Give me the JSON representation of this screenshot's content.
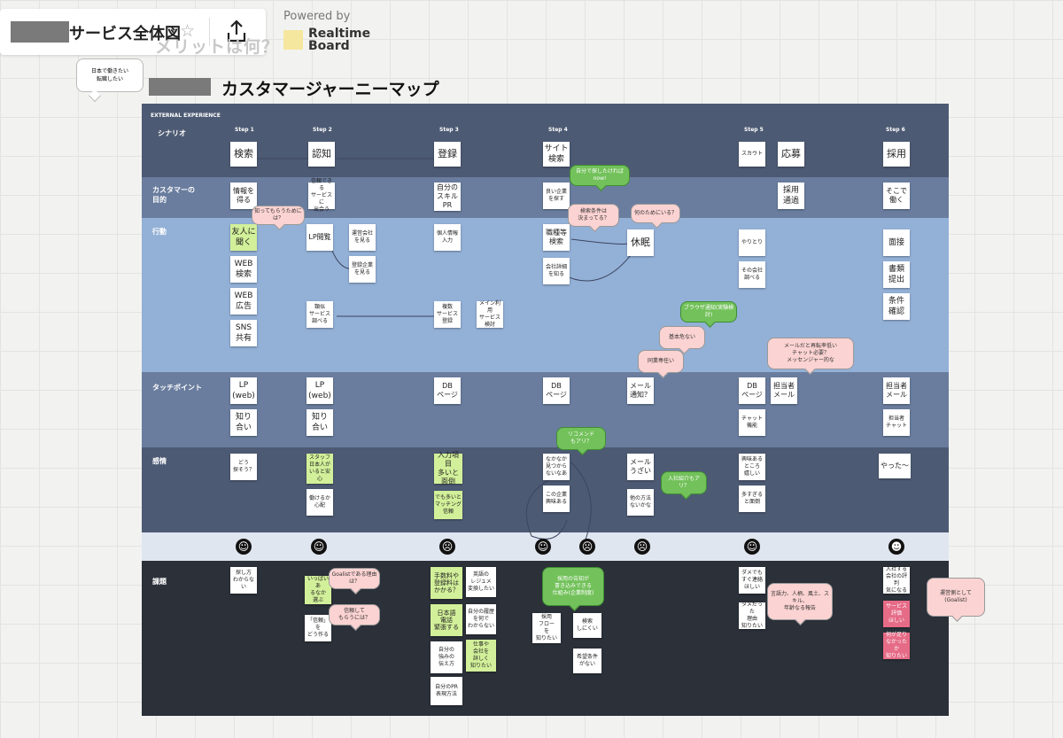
{
  "toolbar": {
    "board_title": "サービス全体図",
    "star_icon": "star-icon",
    "share_icon": "upload-share-icon",
    "ghost_label": "メリットは何？",
    "powered_by": "Powered by",
    "brand_line1": "Realtime",
    "brand_line2": "Board"
  },
  "bubble": {
    "line1": "日本で働きたい",
    "line2": "転職したい"
  },
  "map_title": "カスタマージャーニーマップ",
  "board": {
    "section_header": "EXTERNAL EXPERIENCE",
    "rows": {
      "scenario": "シナリオ",
      "purpose_1": "カスタマーの",
      "purpose_2": "目的",
      "action": "行動",
      "touchpoint": "タッチポイント",
      "emotion": "感情",
      "issue": "課題"
    },
    "steps": [
      "Step 1",
      "Step 2",
      "Step 3",
      "Step 4",
      "Step 5",
      "Step 6"
    ],
    "notes": {
      "sc1": "検索",
      "sc2": "認知",
      "sc3": "登録",
      "sc4": "サイト\n検索",
      "sc5": "スカウト",
      "sc6": "応募",
      "sc7": "採用",
      "pu1": "情報を\n得る",
      "pu2": "信頼できる\nサービスに\n出会う",
      "pu3": "自分の\nスキル\nPR",
      "pu4": "良い企業\nを探す",
      "pu5": "採用\n通過",
      "pu6": "そこで\n働く",
      "ac1": "友人に\n聞く",
      "ac2": "WEB\n検索",
      "ac3": "WEB\n広告",
      "ac4": "SNS\n共有",
      "ac5": "LP閲覧",
      "ac6": "運営会社\nを見る",
      "ac7": "登録企業\nを見る",
      "ac8": "類似\nサービス\n調べる",
      "ac9": "個人情報\n入力",
      "ac10": "複数\nサービス\n登録",
      "ac11": "メイン利用\nサービス\n検討",
      "ac12": "職種等\n検索",
      "ac13": "会社詳細\nを知る",
      "ac14": "休眠",
      "ac15": "やりとり",
      "ac16": "その会社\n調べる",
      "ac17": "面接",
      "ac18": "書類\n提出",
      "ac19": "条件\n確認",
      "tp1": "LP\n(web)",
      "tp2": "知り\n合い",
      "tp3": "LP\n(web)",
      "tp4": "知り\n合い",
      "tp5": "DB\nページ",
      "tp6": "DB\nページ",
      "tp7": "メール\n通知？",
      "tp8": "DB\nページ",
      "tp9": "チャット\n機能",
      "tp10": "担当者\nメール",
      "tp11": "担当者\nメール",
      "tp12": "担当者\nチャット",
      "em1": "どう\n探そう？",
      "em2": "スタッフ\n日本人が\nいると安心",
      "em3": "働けるか\n心配",
      "em4": "入力項目\n多いと\n面倒",
      "em5": "でも多いと\nマッチング\n信頼",
      "em6": "なかなか\n見つから\nないなあ",
      "em7": "この企業\n興味ある",
      "em8": "メール\nうざい",
      "em9": "他の方法\nないかな",
      "em10": "興味ある\nところ\n嬉しい",
      "em11": "多すぎる\nと面倒",
      "em12": "やった〜",
      "is1": "探し方\nわからない",
      "is2": "いっぱいあ\nるなか\n選ぶ",
      "is3": "「信頼」を\nどう作る",
      "is4": "手数料や\n登録料は\nかかる？",
      "is5": "日本語\n電話\n緊張する",
      "is6": "自分の\n強みの\n伝え方",
      "is7": "自分のPR\n表現方法",
      "is8": "英語の\nレジュメ\n変換したい",
      "is9": "自分の履歴\nを何で\nわからない",
      "is10": "仕事や\n会社を\n詳しく\n知りたい",
      "is11": "採用\nフロー\nを\n知りたい",
      "is12": "検索\nしにくい",
      "is13": "希望条件\nがない",
      "is14": "ダメでも\nすぐ連絡\nほしい",
      "is15": "ダメだった\n理由\n知りたい",
      "is16": "入社する\n会社の評判\n気になる",
      "is17": "サービス\n評価\nほしい",
      "is18": "何が足り\nなかったか\n知りたい"
    },
    "callouts": {
      "c1": "知ってもらうためには？",
      "c2": "自分で探したければ\nnow!",
      "c3": "検索条件は\n決まってる？",
      "c4": "何のためにいる？",
      "c5": "ブラウザ通知(実験検討)",
      "c6": "基本危ない",
      "c7": "同業専任い",
      "c8": "メールだと再転率低い\nチャット必要？\nメッセンジャー的な",
      "c9": "リコメンド\nもアリ？",
      "c10": "入社紹介もアリ？",
      "c11": "Goalistである理由は？",
      "c12": "信頼して\nもらうには？",
      "c13": "採用の告知が\n書き込みできる\n仕組み(企業制度)",
      "c14": "言語力、人柄、風土、スキル、\n年齢なる報告",
      "c15": "運営側として\n(Goalist)"
    },
    "faces": [
      "smile-icon",
      "neutral-icon",
      "frown-icon",
      "smile-icon",
      "sad-icon",
      "grimace-icon",
      "smile-icon",
      "laugh-icon"
    ],
    "colors": {
      "band_dark": "#4d5a73",
      "band_mid": "#6a7d9e",
      "band_light": "#93b0d6",
      "band_pale": "#dfe6f0",
      "band_black": "#2b3039",
      "sticky_green": "#d2f09a",
      "sticky_red": "#e66b87",
      "callout_pink": "#fbd3d2",
      "callout_green": "#72c15a"
    }
  }
}
